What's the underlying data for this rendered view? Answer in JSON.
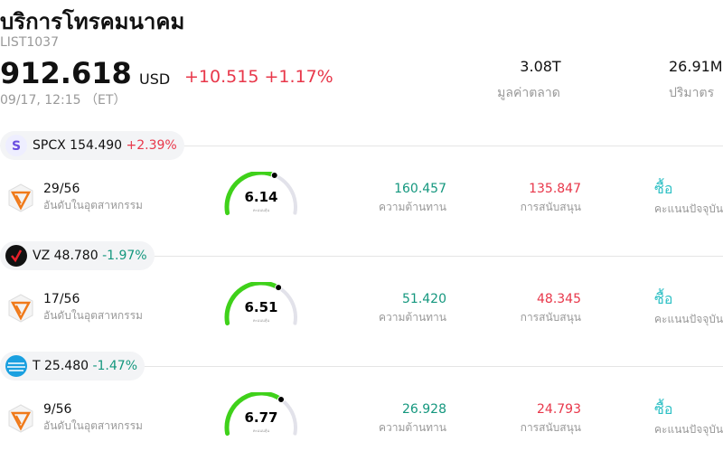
{
  "header": {
    "title": "บริการโทรคมนาคม",
    "code": "LIST1037",
    "price": "912.618",
    "currency": "USD",
    "change": "+10.515",
    "change_pct": "+1.17%",
    "time": "09/17, 12:15 （ET）",
    "stats": [
      {
        "value": "3.08T",
        "label": "มูลค่าตลาด"
      },
      {
        "value": "26.91M",
        "label": "ปริมาตร"
      }
    ]
  },
  "sections": [
    {
      "logo": "S",
      "ticker": "SPCX",
      "price": "154.490",
      "change": "+2.39%",
      "rank": "29/56",
      "rank_label": "อันดับในอุตสาหกรรม",
      "score": 6.14,
      "score_label": "คะแนนหุ้น",
      "resistance": "160.457",
      "resistance_label": "ความต้านทาน",
      "support": "135.847",
      "support_label": "การสนับสนุน",
      "rating": "ซื้อ",
      "rating_label": "คะแนนปัจจุบัน"
    },
    {
      "ticker": "VZ",
      "price": "48.780",
      "change": "-1.97%",
      "rank": "17/56",
      "rank_label": "อันดับในอุตสาหกรรม",
      "score": 6.51,
      "score_label": "คะแนนหุ้น",
      "resistance": "51.420",
      "resistance_label": "ความต้านทาน",
      "support": "48.345",
      "support_label": "การสนับสนุน",
      "rating": "ซื้อ",
      "rating_label": "คะแนนปัจจุบัน"
    },
    {
      "ticker": "T",
      "price": "25.480",
      "change": "-1.47%",
      "rank": "9/56",
      "rank_label": "อันดับในอุตสาหกรรม",
      "score": 6.77,
      "score_label": "คะแนนหุ้น",
      "resistance": "26.928",
      "resistance_label": "ความต้านทาน",
      "support": "24.793",
      "support_label": "การสนับสนุน",
      "rating": "ซื้อ",
      "rating_label": "คะแนนปัจจุบัน"
    }
  ]
}
